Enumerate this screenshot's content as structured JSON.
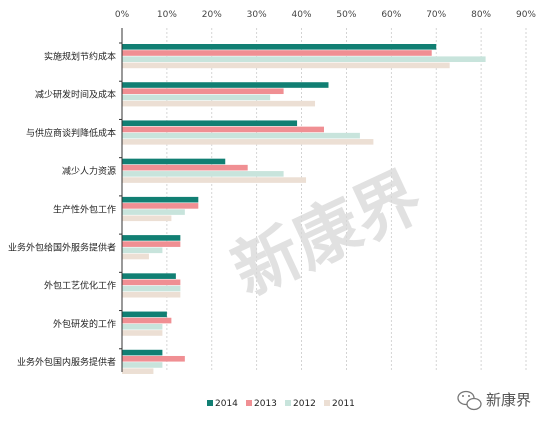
{
  "chart_data": {
    "type": "bar",
    "orientation": "horizontal",
    "title": "",
    "xlabel": "",
    "ylabel": "",
    "xlim": [
      0,
      90
    ],
    "x_ticks": [
      "0%",
      "10%",
      "20%",
      "30%",
      "40%",
      "50%",
      "60%",
      "70%",
      "80%",
      "90%"
    ],
    "grid": "vertical dashed",
    "legend_position": "bottom",
    "categories": [
      "实施规划节约成本",
      "减少研发时间及成本",
      "与供应商谈判降低成本",
      "减少人力资源",
      "生产性外包工作",
      "业务外包给国外服务提供者",
      "外包工艺优化工作",
      "外包研发的工作",
      "业务外包国内服务提供者"
    ],
    "series": [
      {
        "name": "2014",
        "color": "#117f73",
        "values": [
          70,
          46,
          39,
          23,
          17,
          13,
          12,
          10,
          9
        ]
      },
      {
        "name": "2013",
        "color": "#f08f93",
        "values": [
          69,
          36,
          45,
          28,
          17,
          13,
          13,
          11,
          14
        ]
      },
      {
        "name": "2012",
        "color": "#c8e4dc",
        "values": [
          81,
          33,
          53,
          36,
          14,
          9,
          13,
          9,
          9
        ]
      },
      {
        "name": "2011",
        "color": "#ecdfd4",
        "values": [
          73,
          43,
          56,
          41,
          11,
          6,
          13,
          9,
          7
        ]
      }
    ]
  },
  "watermark": {
    "big_text": "新康界",
    "brand_text": "新康界",
    "icon": "wechat-icon"
  }
}
